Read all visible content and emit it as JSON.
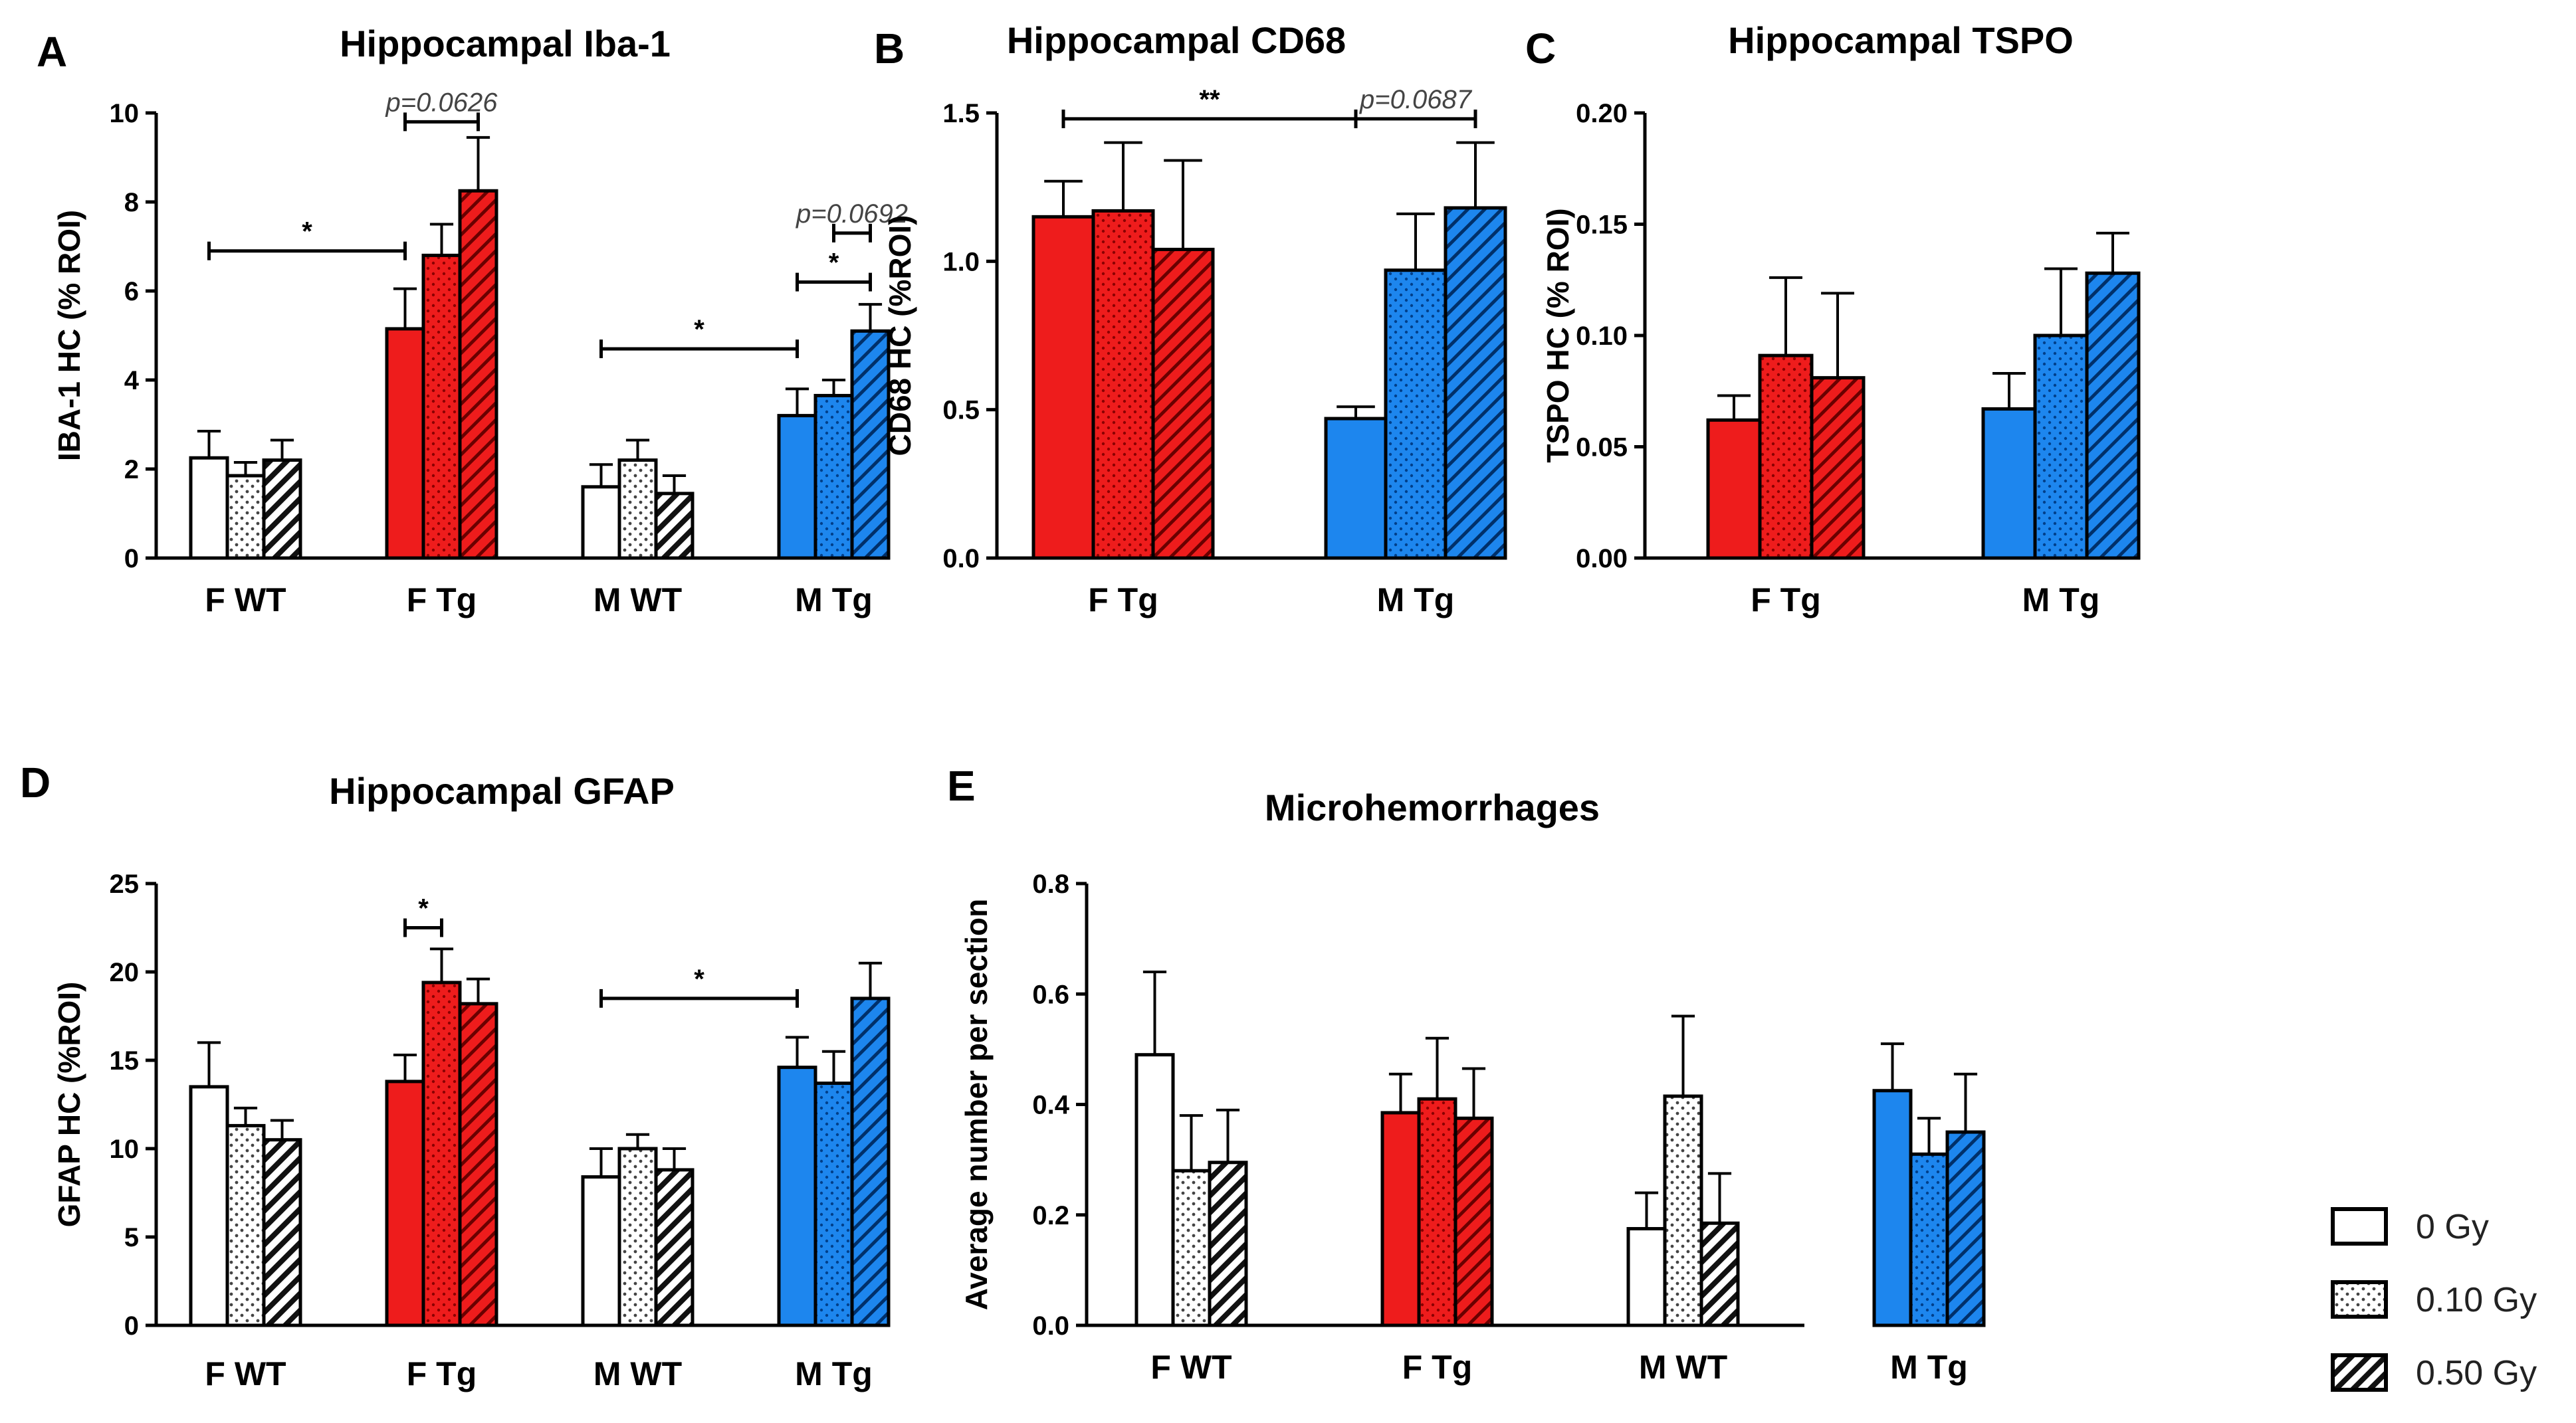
{
  "colors": {
    "0 Gy_F WT": "#ffffff",
    "0.10 Gy_F WT": "#ffffff",
    "0.50 Gy_F WT": "#ffffff",
    "female_tg": "#ee1c1c",
    "male_tg": "#1d86ee",
    "wt": "#ffffff",
    "stroke": "#000000"
  },
  "legend": {
    "items": [
      {
        "label": "0 Gy",
        "pattern": "solid"
      },
      {
        "label": "0.10 Gy",
        "pattern": "dots"
      },
      {
        "label": "0.50 Gy",
        "pattern": "hatch"
      }
    ]
  },
  "chart_data": [
    {
      "id": "A",
      "panel_letter": "A",
      "type": "bar",
      "title": "Hippocampal Iba-1",
      "ylabel": "IBA-1 HC (% ROI)",
      "ylim": [
        0,
        10
      ],
      "yticks": [
        0,
        2,
        4,
        6,
        8,
        10
      ],
      "categories": [
        "F WT",
        "F Tg",
        "M WT",
        "M Tg"
      ],
      "series": [
        {
          "name": "0 Gy",
          "values": [
            2.25,
            5.15,
            1.6,
            3.2
          ],
          "errors": [
            0.6,
            0.9,
            0.5,
            0.6
          ]
        },
        {
          "name": "0.10 Gy",
          "values": [
            1.85,
            6.8,
            2.2,
            3.65
          ],
          "errors": [
            0.3,
            0.7,
            0.45,
            0.35
          ]
        },
        {
          "name": "0.50 Gy",
          "values": [
            2.2,
            8.25,
            1.45,
            5.1
          ],
          "errors": [
            0.45,
            1.2,
            0.4,
            0.6
          ]
        }
      ],
      "annotations": [
        {
          "text": "*",
          "from": [
            0,
            0
          ],
          "to": [
            1,
            0
          ],
          "y": 6.9
        },
        {
          "text": "p=0.0626",
          "from": [
            1,
            0
          ],
          "to": [
            1,
            2
          ],
          "y": 9.8
        },
        {
          "text": "*",
          "from": [
            2,
            0
          ],
          "to": [
            3,
            0
          ],
          "y": 4.7
        },
        {
          "text": "*",
          "from": [
            3,
            0
          ],
          "to": [
            3,
            2
          ],
          "y": 6.2
        },
        {
          "text": "p=0.0692",
          "from": [
            3,
            1
          ],
          "to": [
            3,
            2
          ],
          "y": 7.3
        }
      ]
    },
    {
      "id": "B",
      "panel_letter": "B",
      "type": "bar",
      "title": "Hippocampal CD68",
      "ylabel": "CD68 HC (%ROI)",
      "ylim": [
        0,
        1.5
      ],
      "yticks": [
        0.0,
        0.5,
        1.0,
        1.5
      ],
      "ytick_labels": [
        "0.0",
        "0.5",
        "1.0",
        "1.5"
      ],
      "categories": [
        "F Tg",
        "M Tg"
      ],
      "series": [
        {
          "name": "0 Gy",
          "values": [
            1.15,
            0.47
          ],
          "errors": [
            0.12,
            0.04
          ]
        },
        {
          "name": "0.10 Gy",
          "values": [
            1.17,
            0.97
          ],
          "errors": [
            0.23,
            0.19
          ]
        },
        {
          "name": "0.50 Gy",
          "values": [
            1.04,
            1.18
          ],
          "errors": [
            0.3,
            0.22
          ]
        }
      ],
      "annotations": [
        {
          "text": "**",
          "from": [
            0,
            0
          ],
          "to": [
            1,
            0
          ],
          "y": 1.48
        },
        {
          "text": "p=0.0687",
          "from": [
            1,
            0
          ],
          "to": [
            1,
            2
          ],
          "y": 1.48
        }
      ]
    },
    {
      "id": "C",
      "panel_letter": "C",
      "type": "bar",
      "title": "Hippocampal TSPO",
      "ylabel": "TSPO HC (% ROI)",
      "ylim": [
        0,
        0.2
      ],
      "yticks": [
        0.0,
        0.05,
        0.1,
        0.15,
        0.2
      ],
      "ytick_labels": [
        "0.00",
        "0.05",
        "0.10",
        "0.15",
        "0.20"
      ],
      "categories": [
        "F Tg",
        "M Tg"
      ],
      "series": [
        {
          "name": "0 Gy",
          "values": [
            0.062,
            0.067
          ],
          "errors": [
            0.011,
            0.016
          ]
        },
        {
          "name": "0.10 Gy",
          "values": [
            0.091,
            0.1
          ],
          "errors": [
            0.035,
            0.03
          ]
        },
        {
          "name": "0.50 Gy",
          "values": [
            0.081,
            0.128
          ],
          "errors": [
            0.038,
            0.018
          ]
        }
      ],
      "annotations": []
    },
    {
      "id": "D",
      "panel_letter": "D",
      "type": "bar",
      "title": "Hippocampal GFAP",
      "ylabel": "GFAP HC (%ROI)",
      "ylim": [
        0,
        25
      ],
      "yticks": [
        0,
        5,
        10,
        15,
        20,
        25
      ],
      "categories": [
        "F WT",
        "F Tg",
        "M WT",
        "M Tg"
      ],
      "series": [
        {
          "name": "0 Gy",
          "values": [
            13.5,
            13.8,
            8.4,
            14.6
          ],
          "errors": [
            2.5,
            1.5,
            1.6,
            1.7
          ]
        },
        {
          "name": "0.10 Gy",
          "values": [
            11.3,
            19.4,
            10.0,
            13.7
          ],
          "errors": [
            1.0,
            1.9,
            0.8,
            1.8
          ]
        },
        {
          "name": "0.50 Gy",
          "values": [
            10.5,
            18.2,
            8.8,
            18.5
          ],
          "errors": [
            1.1,
            1.4,
            1.2,
            2.0
          ]
        }
      ],
      "annotations": [
        {
          "text": "*",
          "from": [
            1,
            0
          ],
          "to": [
            1,
            1
          ],
          "y": 22.5
        },
        {
          "text": "*",
          "from": [
            2,
            0
          ],
          "to": [
            3,
            0
          ],
          "y": 18.5
        }
      ]
    },
    {
      "id": "E",
      "panel_letter": "E",
      "type": "bar",
      "title": "Microhemorrhages",
      "ylabel": "Average number per section",
      "ylim": [
        0,
        0.8
      ],
      "yticks": [
        0.0,
        0.2,
        0.4,
        0.6,
        0.8
      ],
      "ytick_labels": [
        "0.0",
        "0.2",
        "0.4",
        "0.6",
        "0.8"
      ],
      "categories": [
        "F WT",
        "F Tg",
        "M WT",
        "M Tg"
      ],
      "series": [
        {
          "name": "0 Gy",
          "values": [
            0.49,
            0.385,
            0.175,
            0.425
          ],
          "errors": [
            0.15,
            0.07,
            0.065,
            0.085
          ]
        },
        {
          "name": "0.10 Gy",
          "values": [
            0.28,
            0.41,
            0.415,
            0.31
          ],
          "errors": [
            0.1,
            0.11,
            0.145,
            0.065
          ]
        },
        {
          "name": "0.50 Gy",
          "values": [
            0.295,
            0.375,
            0.185,
            0.35
          ],
          "errors": [
            0.095,
            0.09,
            0.09,
            0.105
          ]
        }
      ],
      "annotations": []
    }
  ]
}
